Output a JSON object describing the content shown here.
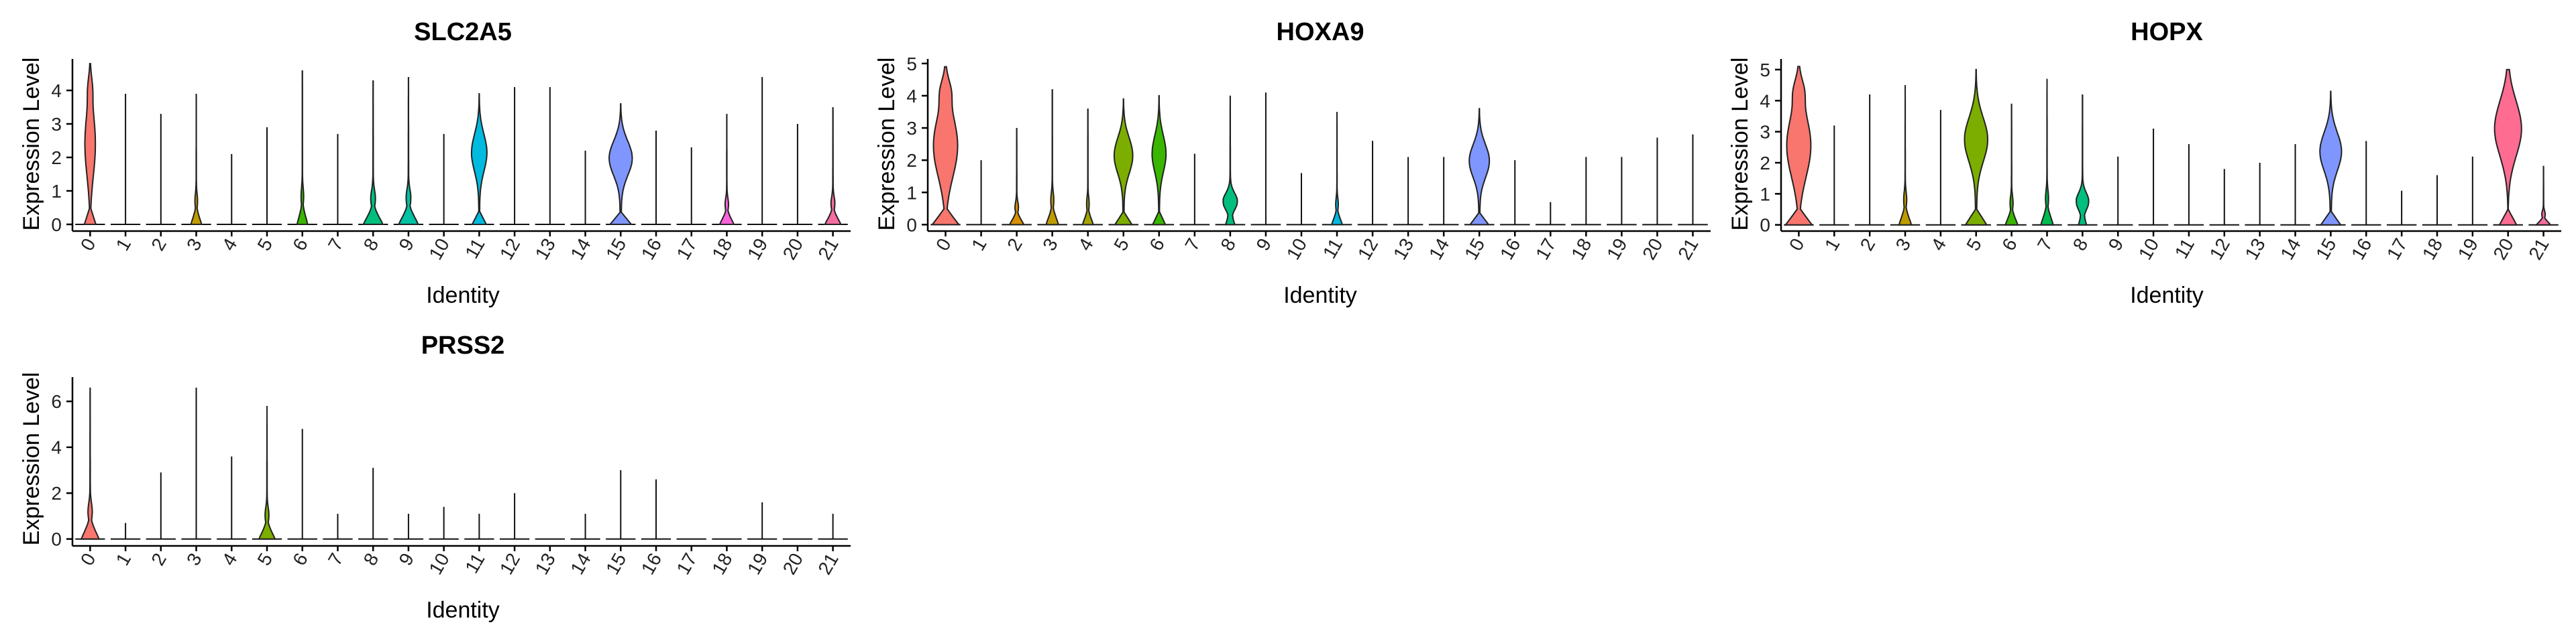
{
  "palette": [
    "#F8766D",
    "#EA8331",
    "#D89000",
    "#C09B00",
    "#A3A500",
    "#7CAE00",
    "#39B600",
    "#00BB4E",
    "#00BF7D",
    "#00C1A3",
    "#00BFC4",
    "#00BAE0",
    "#00B0F6",
    "#35A2FF",
    "#9590FF",
    "#7F96FF",
    "#C77CFF",
    "#E76BF3",
    "#FA62DB",
    "#FF62BC",
    "#FF6C91",
    "#F46DA0"
  ],
  "chart_data": [
    {
      "type": "violin",
      "title": "SLC2A5",
      "xlabel": "Identity",
      "ylabel": "Expression Level",
      "categories": [
        "0",
        "1",
        "2",
        "3",
        "4",
        "5",
        "6",
        "7",
        "8",
        "9",
        "10",
        "11",
        "12",
        "13",
        "14",
        "15",
        "16",
        "17",
        "18",
        "19",
        "20",
        "21"
      ],
      "yticks": [
        0,
        1,
        2,
        3,
        4
      ],
      "ylim": [
        -0.2,
        4.9
      ],
      "max": [
        4.8,
        3.9,
        3.3,
        3.9,
        2.1,
        2.9,
        4.6,
        2.7,
        4.3,
        4.4,
        2.7,
        3.9,
        4.1,
        4.1,
        2.2,
        3.6,
        2.8,
        2.3,
        3.3,
        4.4,
        3.0,
        3.5
      ],
      "width": [
        0.35,
        0,
        0,
        0.3,
        0,
        0,
        0.3,
        0,
        0.55,
        0.55,
        0,
        0.5,
        0,
        0,
        0,
        0.75,
        0,
        0,
        0.4,
        0,
        0,
        0.45
      ],
      "style": [
        "mode",
        "line",
        "line",
        "base",
        "line",
        "line",
        "base",
        "line",
        "base",
        "base",
        "line",
        "mid",
        "line",
        "line",
        "line",
        "mid",
        "line",
        "line",
        "base",
        "line",
        "line",
        "base"
      ]
    },
    {
      "type": "violin",
      "title": "HOXA9",
      "xlabel": "Identity",
      "ylabel": "Expression Level",
      "categories": [
        "0",
        "1",
        "2",
        "3",
        "4",
        "5",
        "6",
        "7",
        "8",
        "9",
        "10",
        "11",
        "12",
        "13",
        "14",
        "15",
        "16",
        "17",
        "18",
        "19",
        "20",
        "21"
      ],
      "yticks": [
        0,
        1,
        2,
        3,
        4,
        5
      ],
      "ylim": [
        -0.2,
        5.1
      ],
      "max": [
        4.9,
        2.0,
        3.0,
        4.2,
        3.6,
        3.9,
        4.0,
        2.2,
        4.0,
        4.1,
        1.6,
        3.5,
        2.6,
        2.1,
        2.1,
        3.6,
        2.0,
        0.7,
        2.1,
        2.1,
        2.7,
        2.8
      ],
      "width": [
        0.8,
        0,
        0.4,
        0.35,
        0.3,
        0.6,
        0.45,
        0,
        0.4,
        0,
        0,
        0.3,
        0,
        0,
        0,
        0.65,
        0,
        0,
        0,
        0,
        0,
        0
      ],
      "style": [
        "mode",
        "line",
        "base",
        "base",
        "base",
        "mid",
        "mid",
        "line",
        "diamond",
        "line",
        "line",
        "base",
        "line",
        "line",
        "line",
        "mid",
        "line",
        "line",
        "line",
        "line",
        "line",
        "line"
      ]
    },
    {
      "type": "violin",
      "title": "HOPX",
      "xlabel": "Identity",
      "ylabel": "Expression Level",
      "categories": [
        "0",
        "1",
        "2",
        "3",
        "4",
        "5",
        "6",
        "7",
        "8",
        "9",
        "10",
        "11",
        "12",
        "13",
        "14",
        "15",
        "16",
        "17",
        "18",
        "19",
        "20",
        "21"
      ],
      "yticks": [
        0,
        1,
        2,
        3,
        4,
        5
      ],
      "ylim": [
        -0.2,
        5.3
      ],
      "max": [
        5.1,
        3.2,
        4.2,
        4.5,
        3.7,
        5.0,
        3.9,
        4.7,
        4.2,
        2.2,
        3.1,
        2.6,
        1.8,
        2.0,
        2.6,
        4.3,
        2.7,
        1.1,
        1.6,
        2.2,
        5.0,
        1.9
      ],
      "width": [
        0.8,
        0,
        0,
        0.35,
        0,
        0.75,
        0.35,
        0.35,
        0.35,
        0,
        0,
        0,
        0,
        0,
        0,
        0.7,
        0,
        0,
        0,
        0,
        0.8,
        0.4
      ],
      "style": [
        "mode",
        "line",
        "line",
        "base",
        "line",
        "mid",
        "base",
        "base",
        "diamond",
        "line",
        "line",
        "line",
        "line",
        "line",
        "line",
        "mid",
        "line",
        "line",
        "line",
        "line",
        "high",
        "base"
      ]
    },
    {
      "type": "violin",
      "title": "PRSS2",
      "xlabel": "Identity",
      "ylabel": "Expression Level",
      "categories": [
        "0",
        "1",
        "2",
        "3",
        "4",
        "5",
        "6",
        "7",
        "8",
        "9",
        "10",
        "11",
        "12",
        "13",
        "14",
        "15",
        "16",
        "17",
        "18",
        "19",
        "20",
        "21"
      ],
      "yticks": [
        0,
        2,
        4,
        6
      ],
      "ylim": [
        -0.3,
        7.0
      ],
      "max": [
        6.6,
        0.7,
        2.9,
        6.6,
        3.6,
        5.8,
        4.8,
        1.1,
        3.1,
        1.1,
        1.4,
        1.1,
        2.0,
        0.0,
        1.1,
        3.0,
        2.6,
        0.0,
        0.0,
        1.6,
        0.0,
        1.1
      ],
      "width": [
        0.5,
        0,
        0,
        0,
        0,
        0.45,
        0,
        0,
        0,
        0,
        0,
        0,
        0,
        0,
        0,
        0,
        0,
        0,
        0,
        0,
        0,
        0
      ],
      "style": [
        "base",
        "line",
        "line",
        "line",
        "line",
        "base",
        "line",
        "line",
        "line",
        "line",
        "line",
        "line",
        "line",
        "line",
        "line",
        "line",
        "line",
        "line",
        "line",
        "line",
        "line",
        "line"
      ]
    }
  ]
}
